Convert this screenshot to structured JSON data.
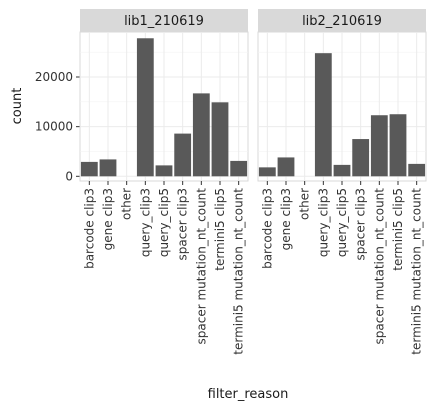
{
  "chart_data": {
    "type": "bar",
    "xlabel": "filter_reason",
    "ylabel": "count",
    "ylim": [
      0,
      30000
    ],
    "yticks": [
      0,
      10000,
      20000
    ],
    "grid": true,
    "bar_color": "#595959",
    "categories": [
      "barcode clip3",
      "gene clip3",
      "other",
      "query_clip3",
      "query_clip5",
      "spacer clip3",
      "spacer mutation_nt_count",
      "termini5 clip5",
      "termini5 mutation_nt_count"
    ],
    "panels": [
      {
        "name": "lib1_210619",
        "values": [
          2900,
          3400,
          0,
          27800,
          2200,
          8600,
          16700,
          14900,
          3100
        ]
      },
      {
        "name": "lib2_210619",
        "values": [
          1800,
          3800,
          0,
          24800,
          2300,
          7500,
          12300,
          12500,
          2500
        ]
      }
    ]
  }
}
